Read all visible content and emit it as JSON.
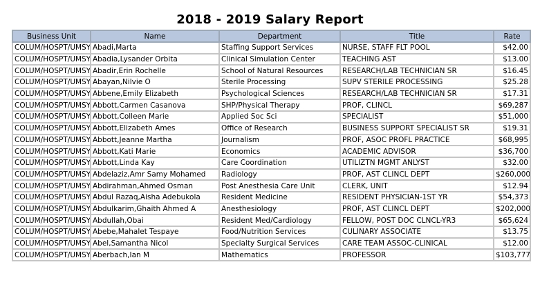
{
  "report": {
    "title": "2018 - 2019 Salary Report",
    "columns": [
      "Business Unit",
      "Name",
      "Department",
      "Title",
      "Rate"
    ],
    "rows": [
      [
        "COLUM/HOSPT/UMSYS",
        "Abadi,Marta",
        "Staffing Support Services",
        "NURSE, STAFF FLT POOL",
        "$42.00"
      ],
      [
        "COLUM/HOSPT/UMSYS",
        "Abadia,Lysander Orbita",
        "Clinical Simulation Center",
        "TEACHING AST",
        "$13.00"
      ],
      [
        "COLUM/HOSPT/UMSYS",
        "Abadir,Erin Rochelle",
        "School of Natural Resources",
        "RESEARCH/LAB TECHNICIAN SR",
        "$16.45"
      ],
      [
        "COLUM/HOSPT/UMSYS",
        "Abayan,Nilvie O",
        "Sterile Processing",
        "SUPV STERILE PROCESSING",
        "$25.28"
      ],
      [
        "COLUM/HOSPT/UMSYS",
        "Abbene,Emily Elizabeth",
        "Psychological Sciences",
        "RESEARCH/LAB TECHNICIAN SR",
        "$17.31"
      ],
      [
        "COLUM/HOSPT/UMSYS",
        "Abbott,Carmen Casanova",
        "SHP/Physical Therapy",
        "PROF, CLINCL",
        "$69,287"
      ],
      [
        "COLUM/HOSPT/UMSYS",
        "Abbott,Colleen Marie",
        "Applied Soc Sci",
        "SPECIALIST",
        "$51,000"
      ],
      [
        "COLUM/HOSPT/UMSYS",
        "Abbott,Elizabeth Ames",
        "Office of Research",
        "BUSINESS SUPPORT SPECIALIST SR",
        "$19.31"
      ],
      [
        "COLUM/HOSPT/UMSYS",
        "Abbott,Jeanne Martha",
        "Journalism",
        "PROF, ASOC PROFL PRACTICE",
        "$68,995"
      ],
      [
        "COLUM/HOSPT/UMSYS",
        "Abbott,Kati Marie",
        "Economics",
        "ACADEMIC ADVISOR",
        "$36,700"
      ],
      [
        "COLUM/HOSPT/UMSYS",
        "Abbott,Linda Kay",
        "Care Coordination",
        "UTILIZTN MGMT ANLYST",
        "$32.00"
      ],
      [
        "COLUM/HOSPT/UMSYS",
        "Abdelaziz,Amr Samy Mohamed",
        "Radiology",
        "PROF, AST CLINCL DEPT",
        "$260,000"
      ],
      [
        "COLUM/HOSPT/UMSYS",
        "Abdirahman,Ahmed Osman",
        "Post Anesthesia Care Unit",
        "CLERK, UNIT",
        "$12.94"
      ],
      [
        "COLUM/HOSPT/UMSYS",
        "Abdul Razaq,Aisha Adebukola",
        "Resident Medicine",
        "RESIDENT PHYSICIAN-1ST YR",
        "$54,373"
      ],
      [
        "COLUM/HOSPT/UMSYS",
        "Abdulkarim,Ghaith Ahmed A",
        "Anesthesiology",
        "PROF, AST CLINCL DEPT",
        "$202,000"
      ],
      [
        "COLUM/HOSPT/UMSYS",
        "Abdullah,Obai",
        "Resident Med/Cardiology",
        "FELLOW, POST DOC CLNCL-YR3",
        "$65,624"
      ],
      [
        "COLUM/HOSPT/UMSYS",
        "Abebe,Mahalet Tespaye",
        "Food/Nutrition Services",
        "CULINARY ASSOCIATE",
        "$13.75"
      ],
      [
        "COLUM/HOSPT/UMSYS",
        "Abel,Samantha Nicol",
        "Specialty Surgical Services",
        "CARE TEAM ASSOC-CLINICAL",
        "$12.00"
      ],
      [
        "COLUM/HOSPT/UMSYS",
        "Aberbach,Ian M",
        "Mathematics",
        "PROFESSOR",
        "$103,777"
      ]
    ]
  }
}
